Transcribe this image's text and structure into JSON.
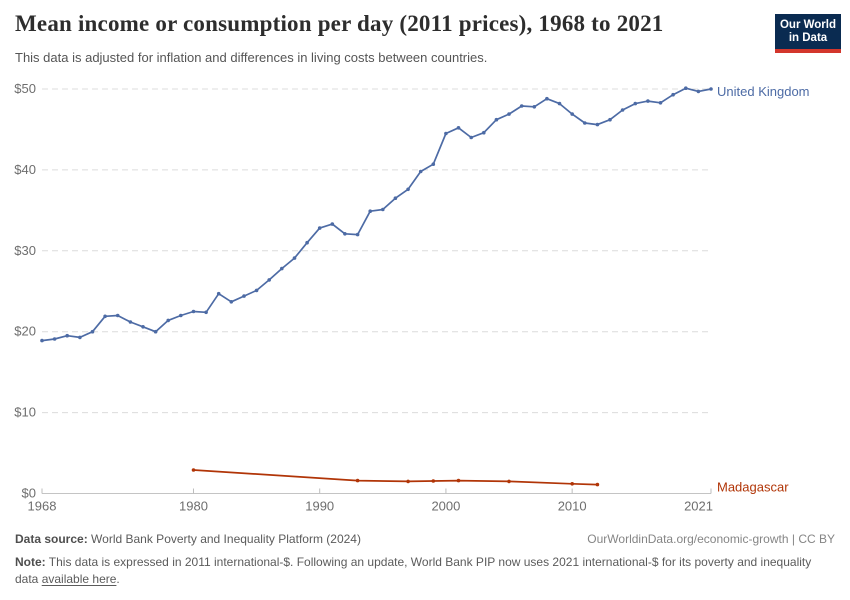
{
  "header": {
    "title": "Mean income or consumption per day (2011 prices), 1968 to 2021",
    "subtitle": "This data is adjusted for inflation and differences in living costs between countries.",
    "logo": {
      "line1": "Our World",
      "line2": "in Data",
      "bg_color": "#0a2b51",
      "accent_color": "#d3362c"
    }
  },
  "chart_data": {
    "type": "line",
    "title": "Mean income or consumption per day (2011 prices), 1968 to 2021",
    "subtitle": "This data is adjusted for inflation and differences in living costs between countries.",
    "xlabel": "",
    "ylabel": "",
    "xlim": [
      1968,
      2021
    ],
    "ylim": [
      0,
      50
    ],
    "x_ticks": [
      1968,
      1980,
      1990,
      2000,
      2010,
      2021
    ],
    "y_ticks": [
      0,
      10,
      20,
      30,
      40,
      50
    ],
    "y_tick_prefix": "$",
    "grid": "horizontal-dashed",
    "legend_position": "line-end-labels",
    "series": [
      {
        "name": "United Kingdom",
        "color": "#4d6ba5",
        "x": [
          1968,
          1969,
          1970,
          1971,
          1972,
          1973,
          1974,
          1975,
          1976,
          1977,
          1978,
          1979,
          1980,
          1981,
          1982,
          1983,
          1984,
          1985,
          1986,
          1987,
          1988,
          1989,
          1990,
          1991,
          1992,
          1993,
          1994,
          1995,
          1996,
          1997,
          1998,
          1999,
          2000,
          2001,
          2002,
          2003,
          2004,
          2005,
          2006,
          2007,
          2008,
          2009,
          2010,
          2011,
          2012,
          2013,
          2014,
          2015,
          2016,
          2017,
          2018,
          2019,
          2020,
          2021
        ],
        "values": [
          18.9,
          19.1,
          19.5,
          19.3,
          20.0,
          21.9,
          22.0,
          21.2,
          20.6,
          20.0,
          21.4,
          22.0,
          22.5,
          22.4,
          24.7,
          23.7,
          24.4,
          25.1,
          26.4,
          27.8,
          29.1,
          31.0,
          32.8,
          33.3,
          32.1,
          32.0,
          34.9,
          35.1,
          36.5,
          37.6,
          39.8,
          40.7,
          44.5,
          45.2,
          44.0,
          44.6,
          46.2,
          46.9,
          47.9,
          47.8,
          48.8,
          48.2,
          46.9,
          45.8,
          45.6,
          46.2,
          47.4,
          48.2,
          48.5,
          48.3,
          49.3,
          50.1,
          49.7,
          50.0
        ]
      },
      {
        "name": "Madagascar",
        "color": "#b13507",
        "x": [
          1980,
          1993,
          1997,
          1999,
          2001,
          2005,
          2010,
          2012
        ],
        "values": [
          2.9,
          1.6,
          1.5,
          1.55,
          1.6,
          1.5,
          1.2,
          1.1
        ]
      }
    ]
  },
  "footer": {
    "source_label": "Data source:",
    "source_value": "World Bank Poverty and Inequality Platform (2024)",
    "link": "OurWorldinData.org/economic-growth",
    "divider": "|",
    "license": "CC BY",
    "note_label": "Note:",
    "note_before_link": "This data is expressed in 2011 international-$. Following an update, World Bank PIP now uses 2021 international-$ for its poverty and inequality data",
    "note_link": "available here",
    "note_after_link": "."
  }
}
